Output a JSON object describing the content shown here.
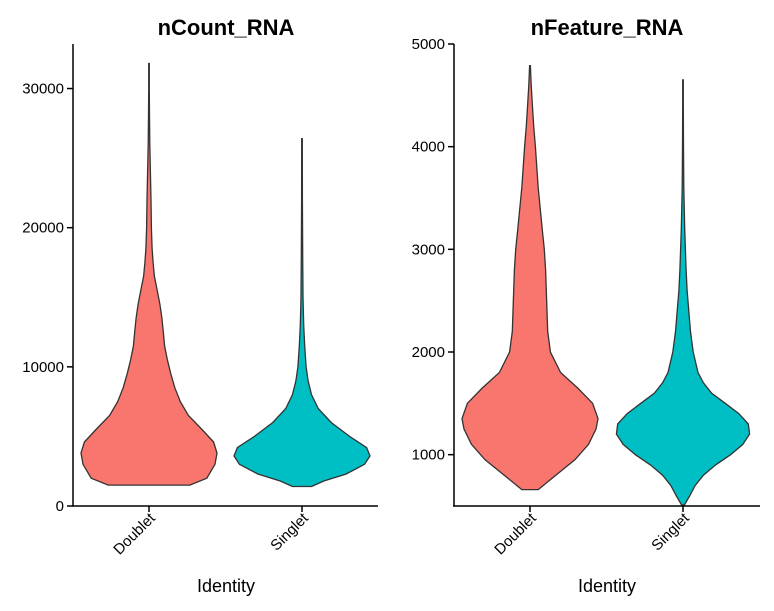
{
  "chart_data": [
    {
      "type": "violin",
      "title": "nCount_RNA",
      "xlabel": "Identity",
      "ylabel": "",
      "categories": [
        "Doublet",
        "Singlet"
      ],
      "colors": [
        "#F8766D",
        "#00BFC4"
      ],
      "ylim": [
        0,
        33200
      ],
      "yticks": [
        0,
        10000,
        20000,
        30000
      ],
      "series": [
        {
          "name": "Doublet",
          "min": 1500,
          "max": 31800,
          "profile": [
            [
              1500,
              0.6
            ],
            [
              2000,
              0.85
            ],
            [
              3000,
              0.97
            ],
            [
              3800,
              1.0
            ],
            [
              4600,
              0.95
            ],
            [
              5500,
              0.78
            ],
            [
              6500,
              0.58
            ],
            [
              7500,
              0.46
            ],
            [
              8500,
              0.38
            ],
            [
              9500,
              0.32
            ],
            [
              10500,
              0.27
            ],
            [
              11500,
              0.23
            ],
            [
              12500,
              0.21
            ],
            [
              13500,
              0.19
            ],
            [
              14500,
              0.16
            ],
            [
              15500,
              0.12
            ],
            [
              16500,
              0.08
            ],
            [
              17500,
              0.06
            ],
            [
              18500,
              0.045
            ],
            [
              20000,
              0.035
            ],
            [
              22000,
              0.03
            ],
            [
              24000,
              0.02
            ],
            [
              26000,
              0.012
            ],
            [
              28000,
              0.007
            ],
            [
              30000,
              0.005
            ],
            [
              31800,
              0.004
            ]
          ]
        },
        {
          "name": "Singlet",
          "min": 1400,
          "max": 26400,
          "profile": [
            [
              1400,
              0.14
            ],
            [
              1800,
              0.32
            ],
            [
              2300,
              0.65
            ],
            [
              3000,
              0.92
            ],
            [
              3600,
              1.0
            ],
            [
              4200,
              0.95
            ],
            [
              5000,
              0.7
            ],
            [
              6000,
              0.43
            ],
            [
              7000,
              0.24
            ],
            [
              8000,
              0.14
            ],
            [
              9000,
              0.09
            ],
            [
              10000,
              0.06
            ],
            [
              11500,
              0.04
            ],
            [
              13000,
              0.025
            ],
            [
              15000,
              0.015
            ],
            [
              18000,
              0.01
            ],
            [
              22000,
              0.006
            ],
            [
              26400,
              0.004
            ]
          ]
        }
      ]
    },
    {
      "type": "violin",
      "title": "nFeature_RNA",
      "xlabel": "Identity",
      "ylabel": "",
      "categories": [
        "Doublet",
        "Singlet"
      ],
      "colors": [
        "#F8766D",
        "#00BFC4"
      ],
      "ylim": [
        500,
        5000
      ],
      "yticks": [
        1000,
        2000,
        3000,
        4000,
        5000
      ],
      "series": [
        {
          "name": "Doublet",
          "min": 660,
          "max": 4790,
          "profile": [
            [
              660,
              0.12
            ],
            [
              800,
              0.38
            ],
            [
              950,
              0.66
            ],
            [
              1100,
              0.86
            ],
            [
              1250,
              0.97
            ],
            [
              1350,
              1.0
            ],
            [
              1500,
              0.92
            ],
            [
              1650,
              0.7
            ],
            [
              1800,
              0.45
            ],
            [
              2000,
              0.3
            ],
            [
              2200,
              0.26
            ],
            [
              2400,
              0.25
            ],
            [
              2600,
              0.24
            ],
            [
              2800,
              0.23
            ],
            [
              3000,
              0.21
            ],
            [
              3200,
              0.18
            ],
            [
              3400,
              0.15
            ],
            [
              3600,
              0.12
            ],
            [
              3800,
              0.1
            ],
            [
              4000,
              0.08
            ],
            [
              4200,
              0.055
            ],
            [
              4400,
              0.035
            ],
            [
              4600,
              0.018
            ],
            [
              4790,
              0.006
            ]
          ]
        },
        {
          "name": "Singlet",
          "min": 510,
          "max": 4650,
          "profile": [
            [
              510,
              0.02
            ],
            [
              600,
              0.1
            ],
            [
              700,
              0.18
            ],
            [
              800,
              0.3
            ],
            [
              900,
              0.48
            ],
            [
              1000,
              0.7
            ],
            [
              1100,
              0.88
            ],
            [
              1200,
              0.98
            ],
            [
              1300,
              0.96
            ],
            [
              1400,
              0.82
            ],
            [
              1500,
              0.62
            ],
            [
              1600,
              0.42
            ],
            [
              1700,
              0.3
            ],
            [
              1800,
              0.22
            ],
            [
              2000,
              0.15
            ],
            [
              2200,
              0.11
            ],
            [
              2400,
              0.085
            ],
            [
              2600,
              0.06
            ],
            [
              2800,
              0.045
            ],
            [
              3000,
              0.035
            ],
            [
              3200,
              0.025
            ],
            [
              3600,
              0.012
            ],
            [
              4000,
              0.008
            ],
            [
              4400,
              0.005
            ],
            [
              4650,
              0.004
            ]
          ]
        }
      ]
    }
  ]
}
